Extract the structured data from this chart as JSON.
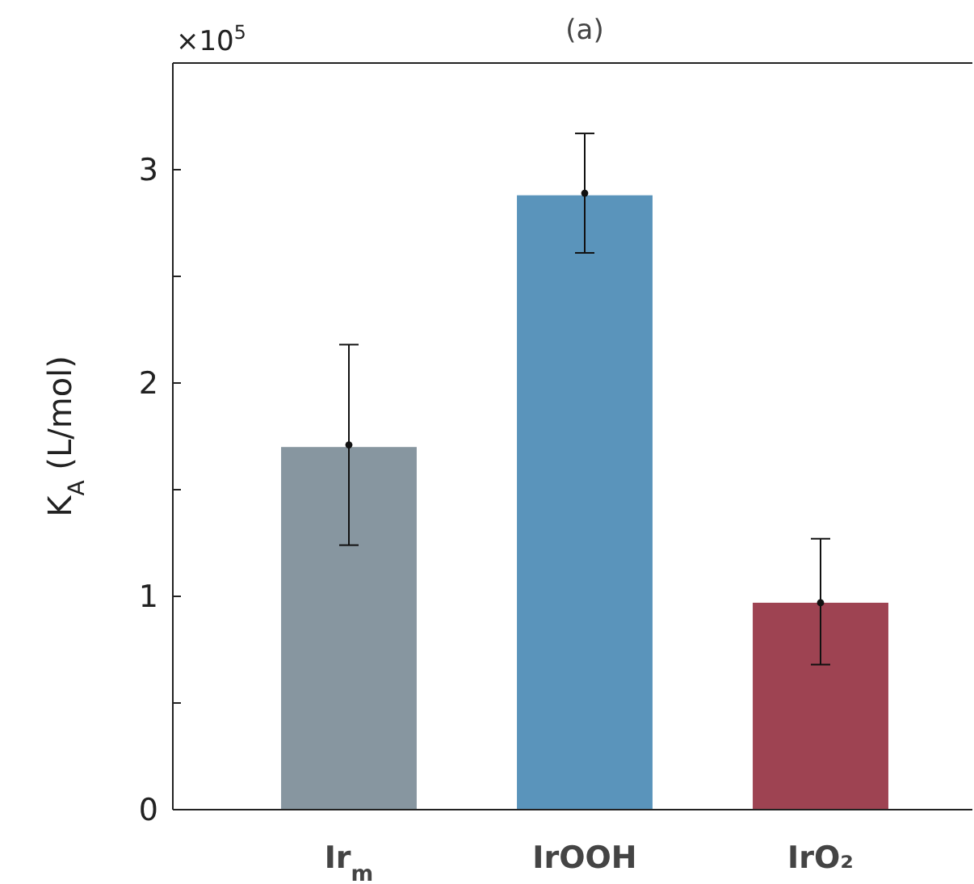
{
  "chart_data": {
    "type": "bar",
    "title": "(a)",
    "ylabel": "K$_{A}$ (L/mol)",
    "annotations": [
      "×10$^{5}$"
    ],
    "categories": [
      "Ir$_{m}$",
      "IrOOH",
      "IrO₂"
    ],
    "series": [
      {
        "values": [
          1.7,
          2.88,
          0.97
        ],
        "colors": [
          "#8796a0",
          "#5a94bb",
          "#9e4352"
        ]
      },
      {
        "type": "scatter",
        "x": [
          "Ir$_{m}$",
          "IrOOH",
          "IrO₂"
        ],
        "values": [
          1.71,
          2.89,
          0.97
        ],
        "errors": [
          [
            1.24,
            2.18
          ],
          [
            2.61,
            3.17
          ],
          [
            0.68,
            1.27
          ]
        ],
        "color": "#111111",
        "marker": "circle"
      }
    ],
    "ylim": [
      0,
      3.5
    ],
    "yticks": [
      0,
      {
        "value": 0.5,
        "label": null
      },
      1,
      {
        "value": 1.5,
        "label": null
      },
      2,
      {
        "value": 2.5,
        "label": null
      },
      3
    ],
    "grid": false
  }
}
